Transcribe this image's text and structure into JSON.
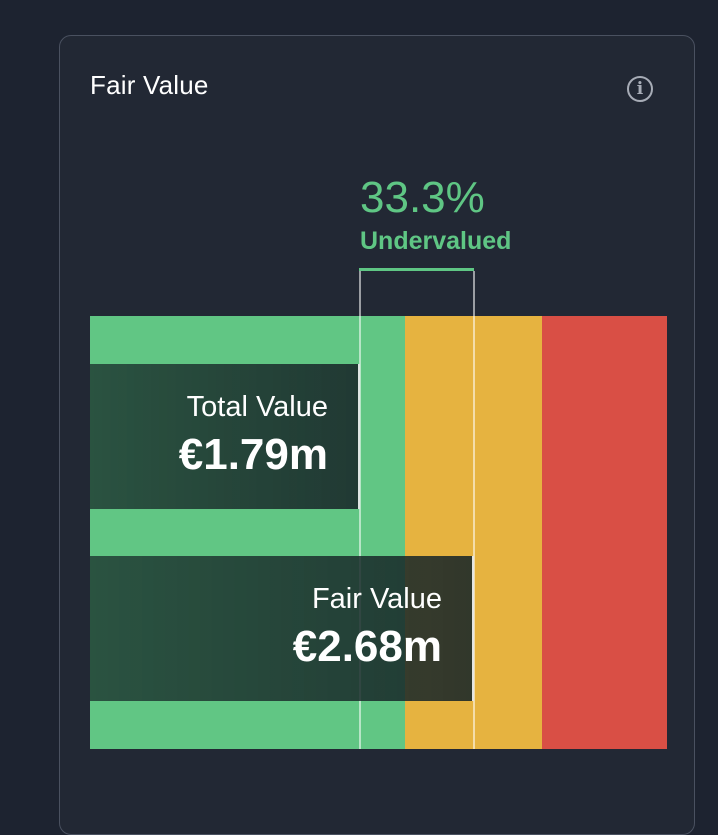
{
  "card": {
    "title": "Fair Value",
    "info_icon": "info-icon"
  },
  "valuation": {
    "percent": "33.3%",
    "status": "Undervalued",
    "status_color": "#5fc684"
  },
  "zones": [
    {
      "name": "undervalued",
      "color": "#61c684"
    },
    {
      "name": "about-right",
      "color": "#e6b340"
    },
    {
      "name": "overvalued",
      "color": "#d94f45"
    }
  ],
  "total_value": {
    "label": "Total Value",
    "value": "€1.79m"
  },
  "fair_value": {
    "label": "Fair Value",
    "value": "€2.68m"
  }
}
